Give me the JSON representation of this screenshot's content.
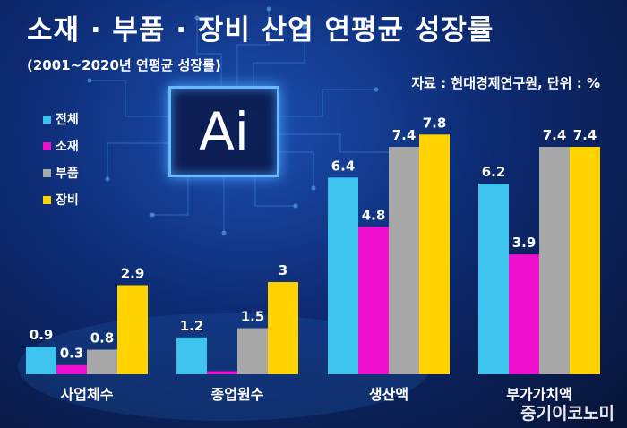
{
  "header": {
    "title": "소재 · 부품 · 장비 산업 연평균 성장률",
    "subtitle": "(2001~2020년 연평균 성장률)",
    "source": "자료 : 현대경제연구원, 단위 : %"
  },
  "decor": {
    "chip_text": "Ai"
  },
  "watermark": "중기이코노미",
  "chart_data": {
    "type": "bar",
    "categories": [
      "사업체수",
      "종업원수",
      "생산액",
      "부가가치액"
    ],
    "series": [
      {
        "name": "전체",
        "color": "#3ec3ef",
        "values": [
          0.9,
          1.2,
          6.4,
          6.2
        ],
        "labels": [
          "0.9",
          "1.2",
          "6.4",
          "6.2"
        ]
      },
      {
        "name": "소재",
        "color": "#ee0fcf",
        "values": [
          0.3,
          0.1,
          4.8,
          3.9
        ],
        "labels": [
          "0.3",
          "",
          "4.8",
          "3.9"
        ]
      },
      {
        "name": "부품",
        "color": "#a8a8a8",
        "values": [
          0.8,
          1.5,
          7.4,
          7.4
        ],
        "labels": [
          "0.8",
          "1.5",
          "7.4",
          "7.4"
        ]
      },
      {
        "name": "장비",
        "color": "#ffd200",
        "values": [
          2.9,
          3.0,
          7.8,
          7.4
        ],
        "labels": [
          "2.9",
          "3",
          "7.8",
          "7.4"
        ]
      }
    ],
    "ylim": [
      0,
      8.1
    ],
    "grid": false,
    "legend_position": "left"
  }
}
